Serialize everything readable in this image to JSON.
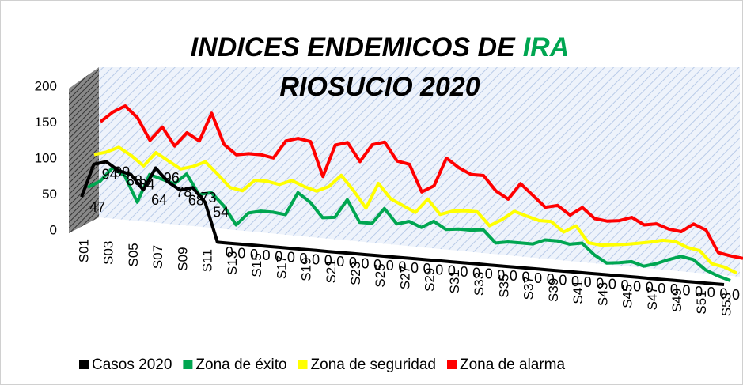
{
  "chart_data": {
    "type": "line3d",
    "title": {
      "line1": "INDICES ENDEMICOS DE",
      "highlight": "IRA",
      "line2": "RIOSUCIO 2020"
    },
    "categories": [
      "S01",
      null,
      "S03",
      null,
      "S05",
      null,
      "S07",
      null,
      "S09",
      null,
      "S11",
      null,
      "S13",
      null,
      "S15",
      null,
      "S17",
      null,
      "S19",
      null,
      "S21",
      null,
      "S23",
      null,
      "S25",
      null,
      "S27",
      null,
      "S29",
      null,
      "S31",
      null,
      "S33",
      null,
      "S35",
      null,
      "S37",
      null,
      "S39",
      null,
      "S41",
      null,
      "S43",
      null,
      "S45",
      null,
      "S47",
      null,
      "S49",
      null,
      "S51",
      null,
      "S53"
    ],
    "series": [
      {
        "name": "Casos 2020",
        "color": "#000000",
        "values": [
          47,
          94,
          99,
          88,
          84,
          64,
          96,
          78,
          68,
          73,
          54,
          0,
          0,
          0,
          0,
          0,
          0,
          0,
          0,
          0,
          0,
          0,
          0,
          0,
          0,
          0,
          0,
          0,
          0,
          0,
          0,
          0,
          0,
          0,
          0,
          0,
          0,
          0,
          0,
          0,
          0,
          0,
          0,
          0,
          0,
          0,
          0,
          0,
          0,
          0,
          0,
          0,
          0
        ]
      },
      {
        "name": "Zona de éxito",
        "color": "#00a651",
        "values": [
          55,
          65,
          85,
          75,
          40,
          80,
          75,
          70,
          85,
          58,
          62,
          45,
          20,
          38,
          42,
          42,
          40,
          72,
          60,
          40,
          42,
          68,
          38,
          38,
          60,
          40,
          45,
          38,
          48,
          38,
          40,
          40,
          42,
          25,
          28,
          28,
          28,
          35,
          35,
          32,
          35,
          20,
          10,
          12,
          15,
          10,
          15,
          22,
          28,
          25,
          12,
          5,
          0
        ]
      },
      {
        "name": "Zona de seguridad",
        "color": "#ffff00",
        "values": [
          95,
          100,
          108,
          98,
          85,
          105,
          95,
          85,
          90,
          98,
          82,
          65,
          62,
          78,
          78,
          75,
          82,
          75,
          70,
          78,
          95,
          75,
          52,
          88,
          68,
          60,
          52,
          72,
          52,
          58,
          60,
          60,
          42,
          52,
          65,
          60,
          55,
          55,
          42,
          52,
          30,
          28,
          30,
          32,
          35,
          38,
          42,
          42,
          35,
          32,
          15,
          12,
          5
        ]
      },
      {
        "name": "Zona de alarma",
        "color": "#ff0000",
        "values": [
          135,
          150,
          160,
          145,
          115,
          135,
          110,
          130,
          120,
          160,
          118,
          105,
          108,
          108,
          105,
          130,
          135,
          132,
          85,
          130,
          135,
          110,
          135,
          140,
          115,
          112,
          75,
          85,
          125,
          113,
          105,
          105,
          85,
          75,
          98,
          83,
          68,
          72,
          60,
          72,
          58,
          56,
          58,
          64,
          55,
          58,
          52,
          50,
          62,
          55,
          25,
          22,
          20
        ]
      }
    ],
    "data_labels_series": 0,
    "ylim": [
      0,
      200
    ],
    "yticks": [
      0,
      50,
      100,
      150,
      200
    ],
    "legend": "bottom"
  }
}
